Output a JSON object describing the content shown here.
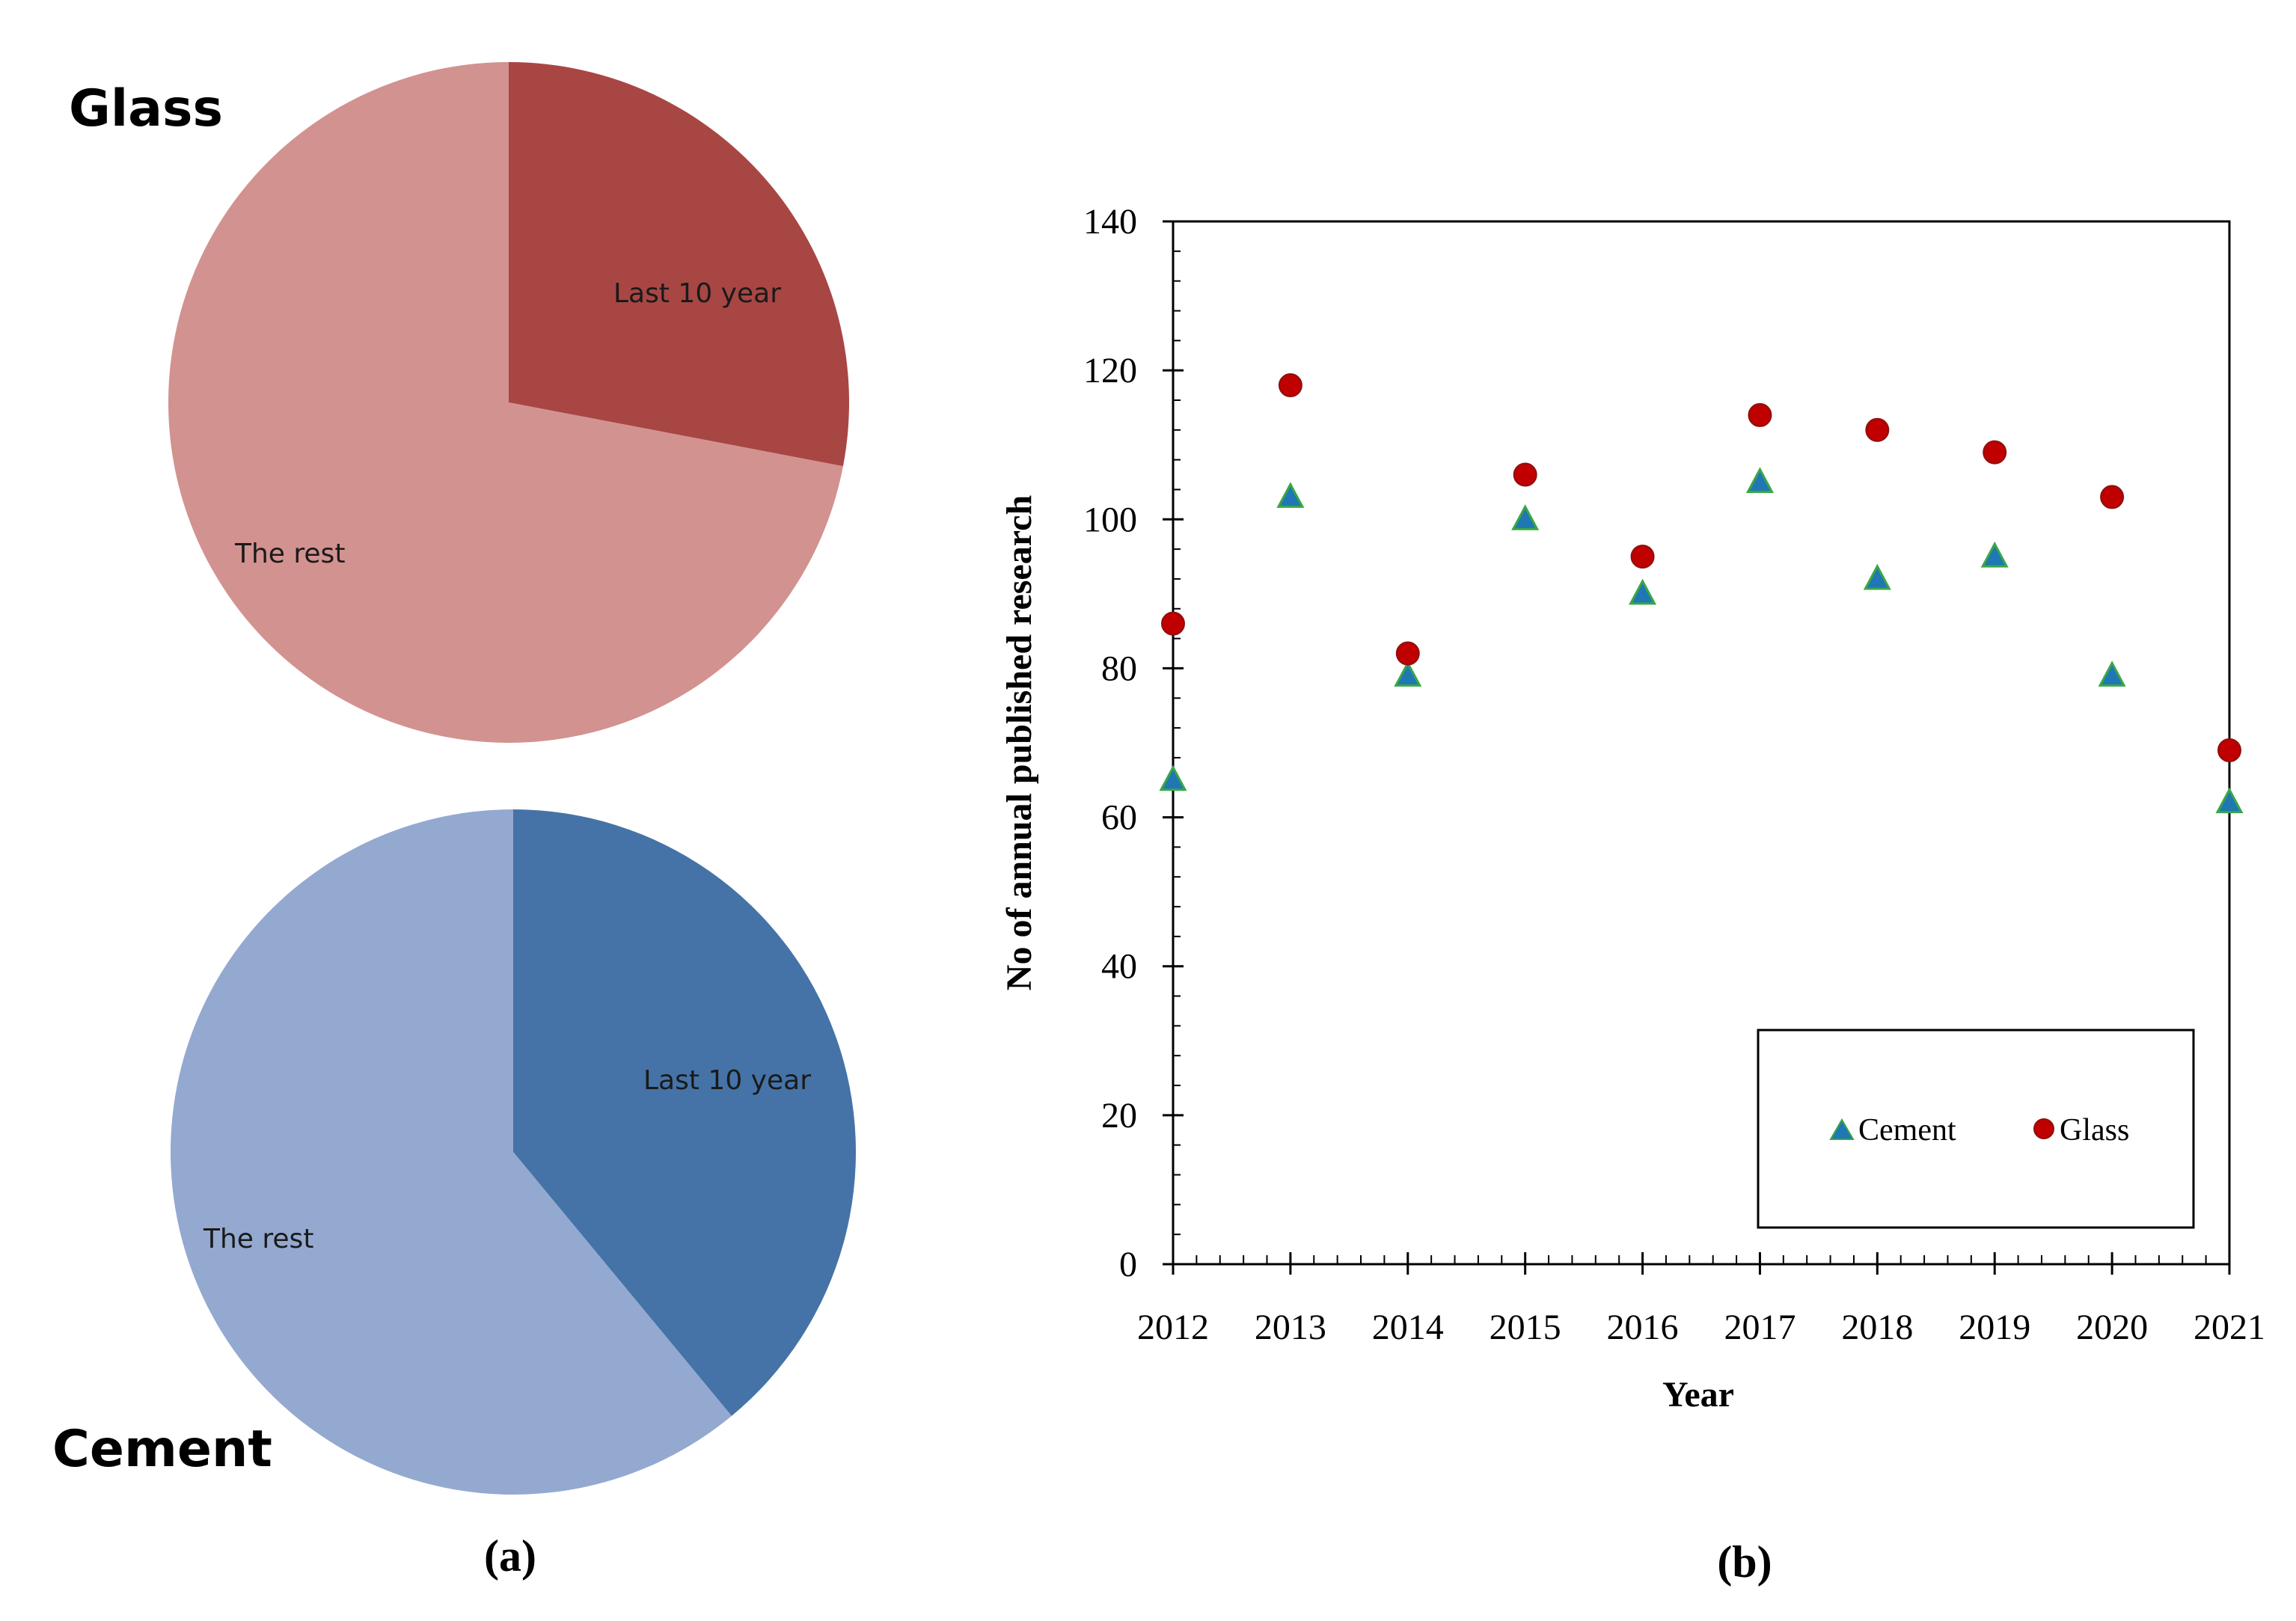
{
  "chart_data": [
    {
      "type": "pie",
      "title": "Glass",
      "slices": [
        {
          "label": "Last 10 year",
          "share": 0.28,
          "color": "#A84644"
        },
        {
          "label": "The rest",
          "share": 0.72,
          "color": "#D29290"
        }
      ]
    },
    {
      "type": "pie",
      "title": "Cement",
      "slices": [
        {
          "label": "Last 10 year",
          "share": 0.39,
          "color": "#4573A7"
        },
        {
          "label": "The rest",
          "share": 0.61,
          "color": "#94A9D0"
        }
      ]
    },
    {
      "type": "scatter",
      "xlabel": "Year",
      "ylabel": "No of annual published research",
      "ylim": [
        0,
        140
      ],
      "yticks": [
        0,
        20,
        40,
        60,
        80,
        100,
        120,
        140
      ],
      "categories": [
        "2012",
        "2013",
        "2014",
        "2015",
        "2016",
        "2017",
        "2018",
        "2019",
        "2020",
        "2021"
      ],
      "series": [
        {
          "name": "Cement",
          "marker": "triangle",
          "color": "#1F77B4",
          "values": [
            65,
            103,
            79,
            100,
            90,
            105,
            92,
            95,
            79,
            62
          ]
        },
        {
          "name": "Glass",
          "marker": "circle",
          "color": "#C00000",
          "values": [
            86,
            118,
            82,
            106,
            95,
            114,
            112,
            109,
            103,
            69
          ]
        }
      ],
      "legend": "bottom-right"
    }
  ],
  "panel_labels": {
    "a": "(a)",
    "b": "(b)"
  }
}
